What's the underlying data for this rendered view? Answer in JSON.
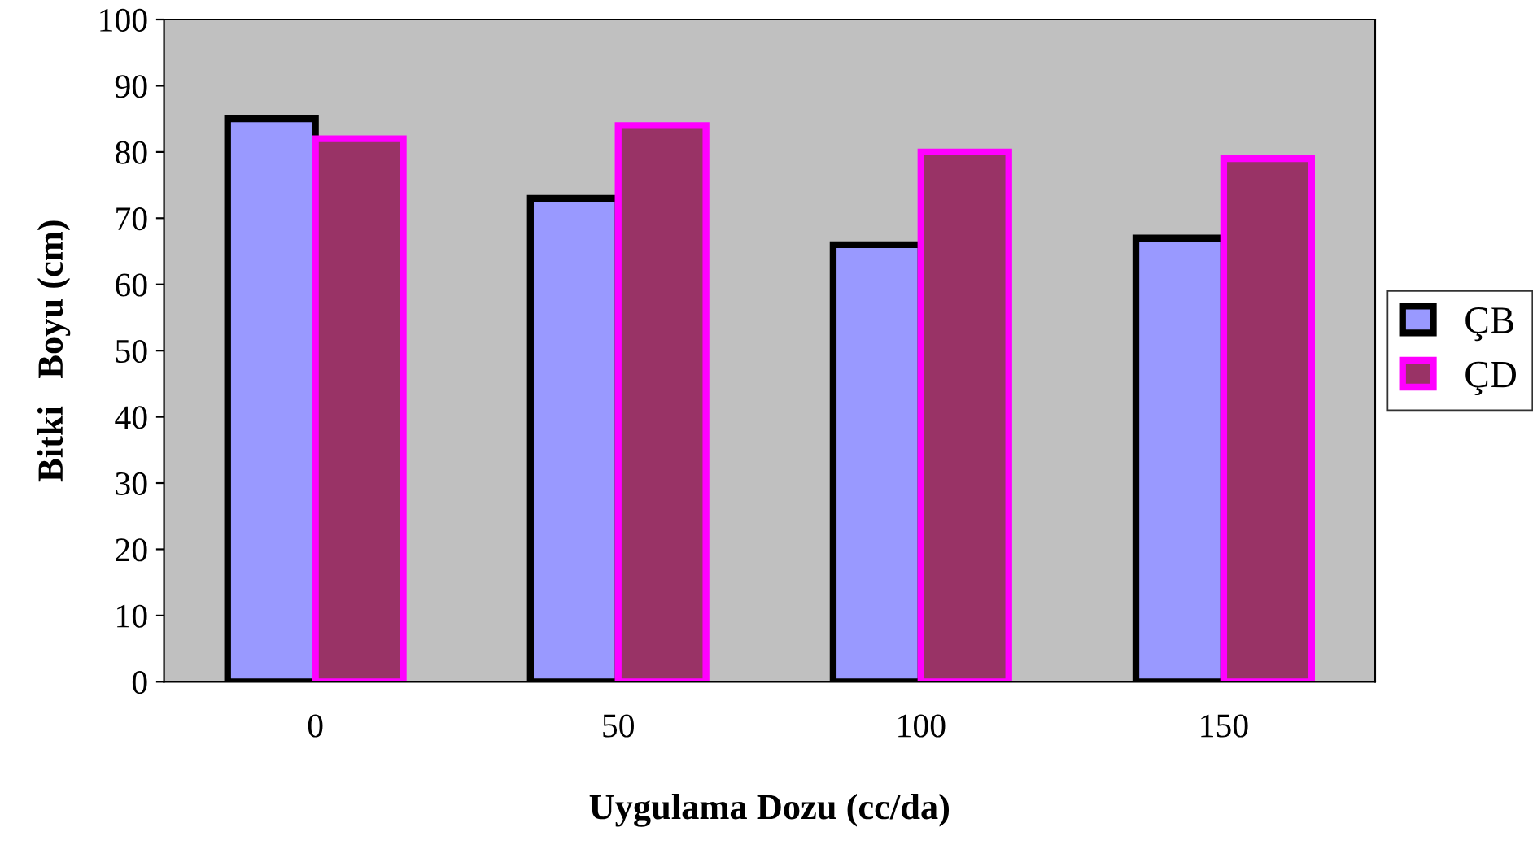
{
  "chart_data": {
    "type": "bar",
    "xlabel": "Uygulama Dozu (cc/da)",
    "ylabel": "Bitki   Boyu (cm)",
    "categories": [
      "0",
      "50",
      "100",
      "150"
    ],
    "series": [
      {
        "name": "ÇB",
        "color": "#9999ff",
        "values": [
          85,
          73,
          66,
          67
        ]
      },
      {
        "name": "ÇD",
        "color": "#993366",
        "values": [
          82,
          84,
          80,
          79
        ]
      }
    ],
    "ylim": [
      0,
      100
    ],
    "yticks": [
      0,
      10,
      20,
      30,
      40,
      50,
      60,
      70,
      80,
      90,
      100
    ],
    "grid": false,
    "legend": "right"
  }
}
